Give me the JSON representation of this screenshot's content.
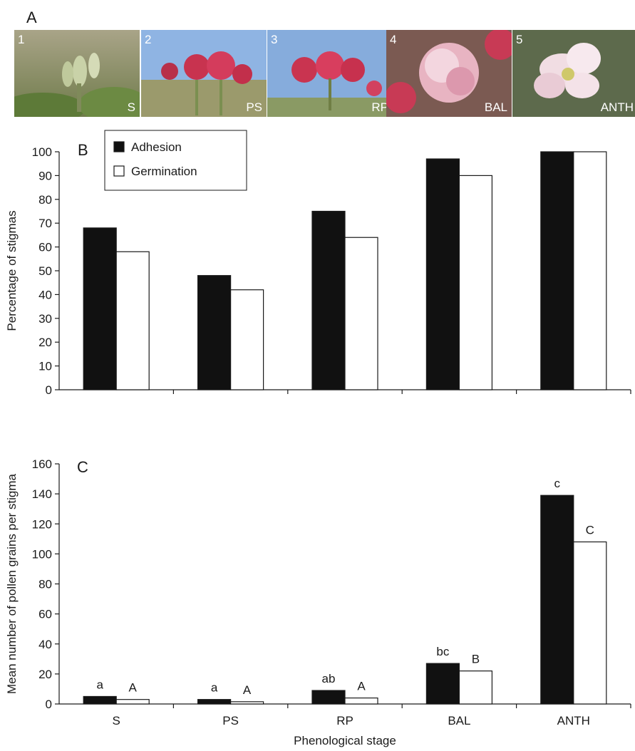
{
  "panel_a": {
    "letter": "A",
    "photos": [
      {
        "number": "1",
        "stage": "S"
      },
      {
        "number": "2",
        "stage": "PS"
      },
      {
        "number": "3",
        "stage": "RP"
      },
      {
        "number": "4",
        "stage": "BAL"
      },
      {
        "number": "5",
        "stage": "ANTH"
      }
    ]
  },
  "chart_data": [
    {
      "panel": "B",
      "type": "bar",
      "categories": [
        "S",
        "PS",
        "RP",
        "BAL",
        "ANTH"
      ],
      "series": [
        {
          "name": "Adhesion",
          "color": "#111111",
          "values": [
            68,
            48,
            75,
            97,
            100
          ]
        },
        {
          "name": "Germination",
          "color": "#ffffff",
          "values": [
            58,
            42,
            64,
            90,
            100
          ]
        }
      ],
      "ylabel": "Percentage of stigmas",
      "ylim": [
        0,
        100
      ],
      "yticks": [
        0,
        10,
        20,
        30,
        40,
        50,
        60,
        70,
        80,
        90,
        100
      ],
      "legend": "top-left",
      "grid": false
    },
    {
      "panel": "C",
      "type": "bar",
      "categories": [
        "S",
        "PS",
        "RP",
        "BAL",
        "ANTH"
      ],
      "series": [
        {
          "name": "Adhesion",
          "color": "#111111",
          "values": [
            5,
            3,
            9,
            27,
            139
          ],
          "labels": [
            "a",
            "a",
            "ab",
            "bc",
            "c"
          ]
        },
        {
          "name": "Germination",
          "color": "#ffffff",
          "values": [
            3,
            1.5,
            4,
            22,
            108
          ],
          "labels": [
            "A",
            "A",
            "A",
            "B",
            "C"
          ]
        }
      ],
      "xlabel": "Phenological stage",
      "ylabel": "Mean number of pollen grains per stigma",
      "ylim": [
        0,
        160
      ],
      "yticks": [
        0,
        20,
        40,
        60,
        80,
        100,
        120,
        140,
        160
      ],
      "grid": false
    }
  ]
}
